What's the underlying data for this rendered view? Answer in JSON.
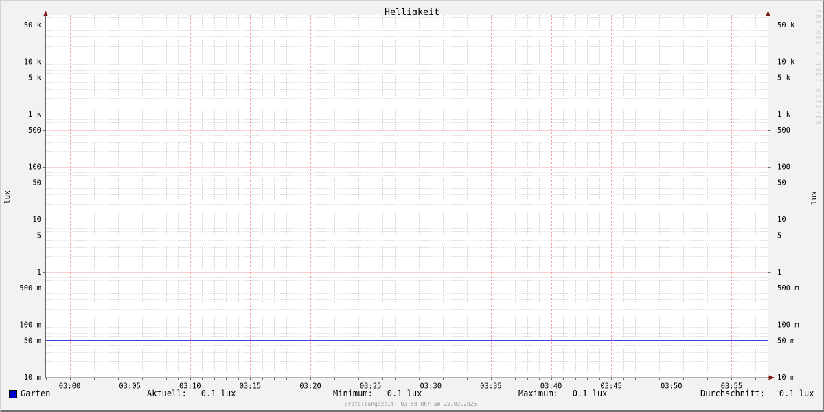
{
  "title": "Helligkeit",
  "watermark": "RRDTOOL / TOBI OETIKER",
  "footer_note": "Erstellungszeit: 03:58 Uhr am 25.03.2026",
  "legend": {
    "series_label": "Garten",
    "swatch_color": "#0000cc"
  },
  "stats": [
    {
      "label": "Aktuell:",
      "value": "0.1 lux"
    },
    {
      "label": "Minimum:",
      "value": "0.1 lux"
    },
    {
      "label": "Maximum:",
      "value": "0.1 lux"
    },
    {
      "label": "Durchschnitt:",
      "value": "0.1 lux"
    }
  ],
  "chart_data": {
    "type": "line",
    "title": "Helligkeit",
    "ylabel": "lux",
    "ylabel_right": "lux",
    "y_scale": "logarithmic",
    "ylim": [
      0.01,
      70000
    ],
    "x_range": [
      "02:58",
      "03:58"
    ],
    "x_minor_step_minutes": 1,
    "x_major_step_minutes": 5,
    "x_ticks": [
      {
        "label": "03:00",
        "minute": 0
      },
      {
        "label": "03:05",
        "minute": 5
      },
      {
        "label": "03:10",
        "minute": 10
      },
      {
        "label": "03:15",
        "minute": 15
      },
      {
        "label": "03:20",
        "minute": 20
      },
      {
        "label": "03:25",
        "minute": 25
      },
      {
        "label": "03:30",
        "minute": 30
      },
      {
        "label": "03:35",
        "minute": 35
      },
      {
        "label": "03:40",
        "minute": 40
      },
      {
        "label": "03:45",
        "minute": 45
      },
      {
        "label": "03:50",
        "minute": 50
      },
      {
        "label": "03:55",
        "minute": 55
      }
    ],
    "y_ticks": [
      {
        "label": "50 k",
        "value": 50000
      },
      {
        "label": "10 k",
        "value": 10000
      },
      {
        "label": "5 k",
        "value": 5000
      },
      {
        "label": "1 k",
        "value": 1000
      },
      {
        "label": "500",
        "value": 500
      },
      {
        "label": "100",
        "value": 100
      },
      {
        "label": "50",
        "value": 50
      },
      {
        "label": "10",
        "value": 10
      },
      {
        "label": "5",
        "value": 5
      },
      {
        "label": "1",
        "value": 1
      },
      {
        "label": "500 m",
        "value": 0.5
      },
      {
        "label": "100 m",
        "value": 0.1
      },
      {
        "label": "50 m",
        "value": 0.05
      },
      {
        "label": "10 m",
        "value": 0.01
      }
    ],
    "y_minor_multipliers": [
      2,
      3,
      4,
      6,
      7,
      8,
      9
    ],
    "series": [
      {
        "name": "Garten",
        "color": "#0000cc",
        "shape": "constant-horizontal-line",
        "value_lux": 0.05
      }
    ],
    "grid": {
      "major_color": "#f2a0a0",
      "minor_color": "#cccccc",
      "style": "dotted"
    },
    "legend_position": "bottom"
  },
  "colors": {
    "background": "#f2f2f2",
    "plot_background": "#ffffff",
    "axis": "#666666",
    "arrow": "#801818",
    "text": "#000000",
    "watermark": "#c8c8c8",
    "footer_text": "#9a9a9a"
  }
}
